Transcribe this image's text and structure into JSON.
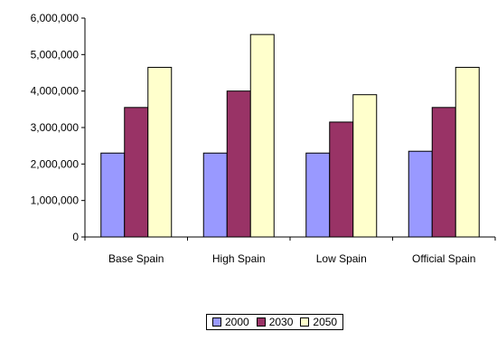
{
  "chart_data": {
    "type": "bar",
    "title": "",
    "xlabel": "",
    "ylabel": "",
    "categories": [
      "Base Spain",
      "High Spain",
      "Low Spain",
      "Official Spain"
    ],
    "ylim": [
      0,
      6000000
    ],
    "yticks": [
      0,
      1000000,
      2000000,
      3000000,
      4000000,
      5000000,
      6000000
    ],
    "ytick_labels": [
      "0",
      "1,000,000",
      "2,000,000",
      "3,000,000",
      "4,000,000",
      "5,000,000",
      "6,000,000"
    ],
    "grid": false,
    "legend_position": "bottom",
    "series": [
      {
        "name": "2000",
        "color": "#9999FF",
        "values": [
          2300000,
          2300000,
          2300000,
          2350000
        ]
      },
      {
        "name": "2030",
        "color": "#993366",
        "values": [
          3550000,
          4000000,
          3150000,
          3550000
        ]
      },
      {
        "name": "2050",
        "color": "#FFFFCC",
        "values": [
          4650000,
          5550000,
          3900000,
          4650000
        ]
      }
    ]
  }
}
